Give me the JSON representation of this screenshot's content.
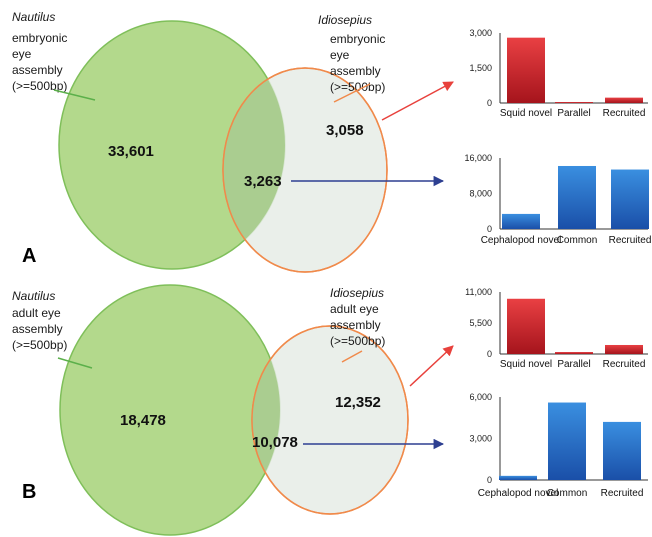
{
  "panels": [
    {
      "id": "A",
      "letter": "A",
      "left": {
        "species": "Nautilus",
        "desc": [
          "embryonic",
          "eye",
          "assembly",
          "(>=500bp)"
        ],
        "count": "33,601"
      },
      "right": {
        "species": "Idiosepius",
        "desc": [
          "embryonic",
          "eye",
          "assembly",
          "(>=500bp)"
        ],
        "count": "3,058"
      },
      "overlap": {
        "count": "3,263"
      }
    },
    {
      "id": "B",
      "letter": "B",
      "left": {
        "species": "Nautilus",
        "desc": [
          "adult eye",
          "assembly",
          "(>=500bp)"
        ],
        "count": "18,478"
      },
      "right": {
        "species": "Idiosepius",
        "desc": [
          "adult eye",
          "assembly",
          "(>=500bp)"
        ],
        "count": "12,352"
      },
      "overlap": {
        "count": "10,078"
      }
    }
  ],
  "colors": {
    "left_fill": "#b3d98c",
    "left_stroke": "#7fbf5a",
    "right_fill": "#e6ece6",
    "right_stroke": "#f08a4b",
    "overlap_fill": "#aacd90",
    "red_arrow": "#e8413c",
    "blue_arrow": "#2d3f91",
    "red_top": "#e94043",
    "red_bottom": "#a5141c",
    "blue_top": "#3a8fe0",
    "blue_bottom": "#1a4fa8",
    "leader_green": "#5bb04a",
    "leader_orange": "#f08a4b"
  },
  "chart_data": [
    {
      "type": "bar",
      "categories": [
        "Squid novel",
        "Parallel",
        "Recruited"
      ],
      "values": [
        2800,
        40,
        230
      ],
      "yticks": [
        "3,000",
        "1,500",
        "0"
      ],
      "ylim": [
        0,
        3000
      ],
      "color": "red"
    },
    {
      "type": "bar",
      "categories": [
        "Cephalopod novel",
        "Common",
        "Recruited"
      ],
      "values": [
        3400,
        14200,
        13400
      ],
      "yticks": [
        "16,000",
        "8,000",
        "0"
      ],
      "ylim": [
        0,
        16000
      ],
      "color": "blue"
    },
    {
      "type": "bar",
      "categories": [
        "Squid novel",
        "Parallel",
        "Recruited"
      ],
      "values": [
        9800,
        350,
        1600
      ],
      "yticks": [
        "11,000",
        "5,500",
        "0"
      ],
      "ylim": [
        0,
        11000
      ],
      "color": "red"
    },
    {
      "type": "bar",
      "categories": [
        "Cephalopod novel",
        "Common",
        "Recruited"
      ],
      "values": [
        300,
        5600,
        4200
      ],
      "yticks": [
        "6,000",
        "3,000",
        "0"
      ],
      "ylim": [
        0,
        6000
      ],
      "color": "blue"
    }
  ]
}
